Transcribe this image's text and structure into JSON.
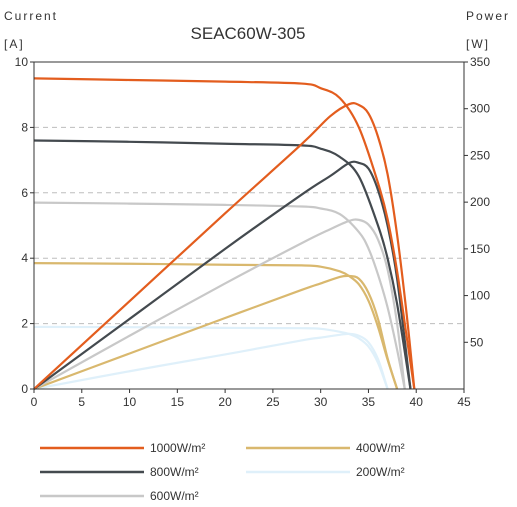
{
  "chart_data": {
    "type": "line",
    "title": "SEAC60W-305",
    "left_axis": {
      "label_line1": "Current",
      "label_line2": "[A]",
      "range": [
        0,
        10
      ],
      "ticks": [
        "0",
        "2",
        "4",
        "6",
        "8",
        "10"
      ]
    },
    "right_axis": {
      "label_line1": "Power",
      "label_line2": "[W]",
      "range": [
        0,
        350
      ],
      "ticks": [
        "50",
        "100",
        "150",
        "200",
        "250",
        "300",
        "350"
      ]
    },
    "x_axis": {
      "range": [
        0,
        45
      ],
      "ticks": [
        "0",
        "5",
        "10",
        "15",
        "20",
        "25",
        "30",
        "35",
        "40",
        "45"
      ]
    },
    "grid": {
      "horizontal_dashed_at_current": [
        2,
        4,
        6,
        8
      ]
    },
    "legend_placement": "bottom",
    "series": [
      {
        "name": "1000W/m²",
        "color": "#e35d1e",
        "iv": [
          [
            0,
            9.5
          ],
          [
            10,
            9.45
          ],
          [
            20,
            9.4
          ],
          [
            28,
            9.34
          ],
          [
            30,
            9.2
          ],
          [
            32,
            8.9
          ],
          [
            34,
            8.0
          ],
          [
            36,
            6.3
          ],
          [
            37,
            5.2
          ],
          [
            38,
            3.6
          ],
          [
            39,
            1.6
          ],
          [
            39.8,
            0
          ]
        ],
        "pv": [
          [
            0,
            0
          ],
          [
            10,
            94
          ],
          [
            20,
            188
          ],
          [
            28,
            262
          ],
          [
            31,
            292
          ],
          [
            33,
            305
          ],
          [
            34,
            304
          ],
          [
            35,
            295
          ],
          [
            36,
            270
          ],
          [
            37,
            230
          ],
          [
            38,
            165
          ],
          [
            39,
            80
          ],
          [
            39.8,
            0
          ]
        ]
      },
      {
        "name": "800W/m²",
        "color": "#444a4f",
        "iv": [
          [
            0,
            7.6
          ],
          [
            10,
            7.56
          ],
          [
            20,
            7.5
          ],
          [
            28,
            7.45
          ],
          [
            30,
            7.35
          ],
          [
            32,
            7.1
          ],
          [
            34,
            6.5
          ],
          [
            36,
            5.0
          ],
          [
            37,
            4.0
          ],
          [
            38,
            2.6
          ],
          [
            39.4,
            0
          ]
        ],
        "pv": [
          [
            0,
            0
          ],
          [
            10,
            75
          ],
          [
            20,
            150
          ],
          [
            28,
            208
          ],
          [
            31,
            228
          ],
          [
            33,
            242
          ],
          [
            34,
            242
          ],
          [
            35,
            236
          ],
          [
            36,
            213
          ],
          [
            37,
            175
          ],
          [
            38,
            118
          ],
          [
            39.4,
            0
          ]
        ]
      },
      {
        "name": "600W/m²",
        "color": "#c8c8c8",
        "iv": [
          [
            0,
            5.7
          ],
          [
            10,
            5.67
          ],
          [
            20,
            5.63
          ],
          [
            28,
            5.58
          ],
          [
            30,
            5.52
          ],
          [
            32,
            5.35
          ],
          [
            34,
            4.8
          ],
          [
            35,
            4.3
          ],
          [
            36,
            3.5
          ],
          [
            37,
            2.5
          ],
          [
            38,
            1.2
          ],
          [
            38.8,
            0
          ]
        ],
        "pv": [
          [
            0,
            0
          ],
          [
            10,
            57
          ],
          [
            20,
            113
          ],
          [
            28,
            156
          ],
          [
            31,
            171
          ],
          [
            33,
            180
          ],
          [
            34,
            181
          ],
          [
            35,
            176
          ],
          [
            36,
            160
          ],
          [
            37,
            128
          ],
          [
            38,
            70
          ],
          [
            38.8,
            0
          ]
        ]
      },
      {
        "name": "400W/m²",
        "color": "#d9b86e",
        "iv": [
          [
            0,
            3.85
          ],
          [
            10,
            3.83
          ],
          [
            20,
            3.8
          ],
          [
            28,
            3.78
          ],
          [
            30,
            3.74
          ],
          [
            32,
            3.6
          ],
          [
            33,
            3.45
          ],
          [
            34,
            3.2
          ],
          [
            35,
            2.7
          ],
          [
            36,
            1.9
          ],
          [
            37,
            0.9
          ],
          [
            38,
            0
          ]
        ],
        "pv": [
          [
            0,
            0
          ],
          [
            10,
            38
          ],
          [
            20,
            76
          ],
          [
            28,
            106
          ],
          [
            30,
            113
          ],
          [
            32,
            120
          ],
          [
            33,
            121
          ],
          [
            34,
            118
          ],
          [
            35,
            103
          ],
          [
            36,
            75
          ],
          [
            37,
            33
          ],
          [
            38,
            0
          ]
        ]
      },
      {
        "name": "200W/m²",
        "color": "#dff0fa",
        "iv": [
          [
            0,
            1.9
          ],
          [
            10,
            1.89
          ],
          [
            20,
            1.87
          ],
          [
            28,
            1.86
          ],
          [
            30,
            1.84
          ],
          [
            32,
            1.75
          ],
          [
            33,
            1.68
          ],
          [
            34,
            1.55
          ],
          [
            35,
            1.3
          ],
          [
            36,
            0.8
          ],
          [
            37,
            0
          ]
        ],
        "pv": [
          [
            0,
            0
          ],
          [
            10,
            19
          ],
          [
            20,
            37
          ],
          [
            28,
            52
          ],
          [
            30,
            55
          ],
          [
            32,
            58
          ],
          [
            33,
            59
          ],
          [
            34,
            57
          ],
          [
            35,
            50
          ],
          [
            36,
            32
          ],
          [
            37,
            0
          ]
        ]
      }
    ]
  }
}
